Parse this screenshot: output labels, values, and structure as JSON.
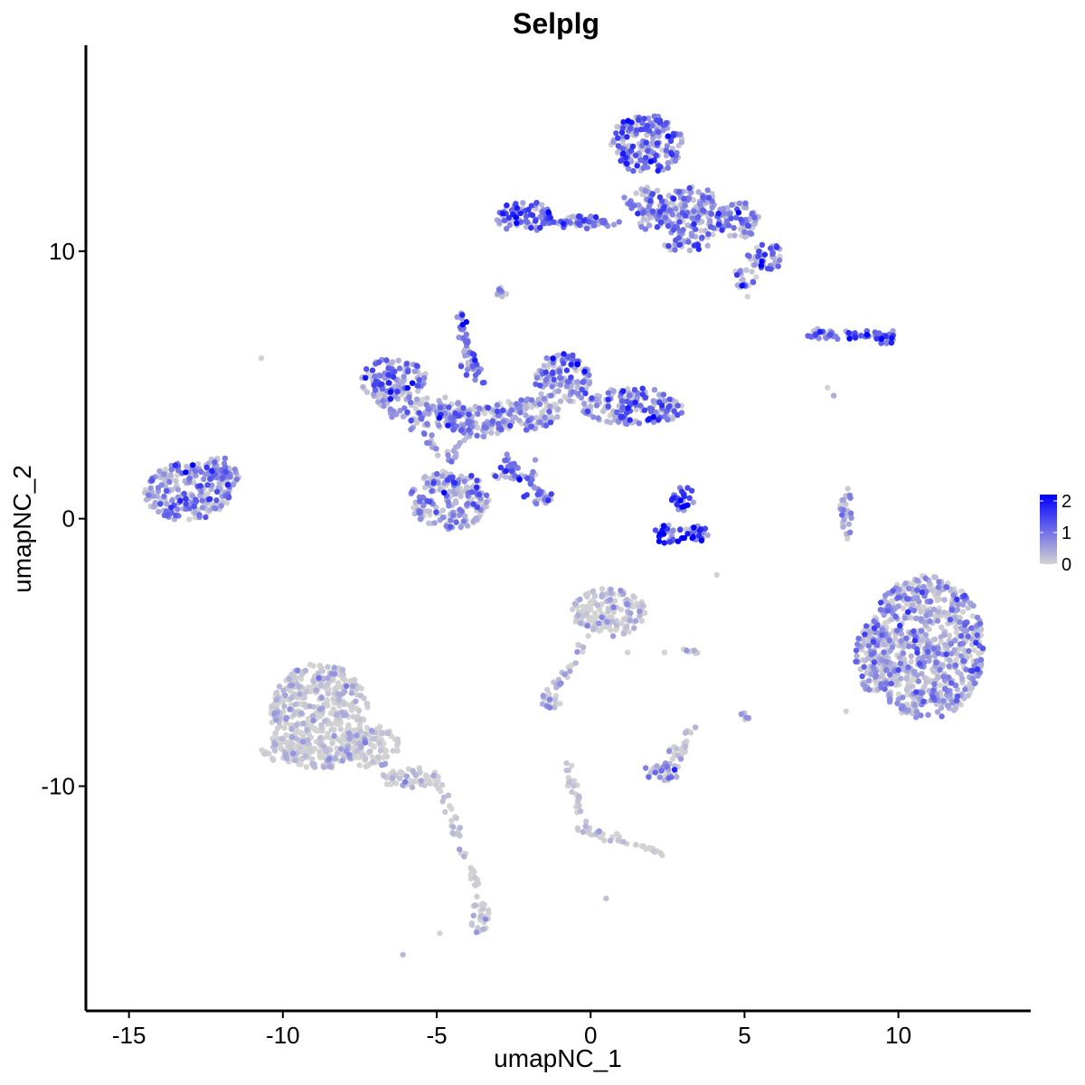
{
  "chart_data": {
    "type": "scatter",
    "title": "Selplg",
    "xlabel": "umapNC_1",
    "ylabel": "umapNC_2",
    "xlim": [
      -16.4,
      14.3
    ],
    "ylim": [
      -18.4,
      17.7
    ],
    "x_ticks": [
      -15,
      -10,
      -5,
      0,
      5,
      10
    ],
    "y_ticks": [
      -10,
      0,
      10
    ],
    "x_tick_labels": [
      "-15",
      "-10",
      "-5",
      "0",
      "5",
      "10"
    ],
    "y_tick_labels": [
      "-10",
      "0",
      "10"
    ],
    "grid": false,
    "legend": {
      "placement": "right",
      "type": "colorbar",
      "range": [
        0,
        2.2
      ],
      "ticks": [
        0,
        1,
        2
      ],
      "tick_labels": [
        "0",
        "1",
        "2"
      ],
      "low_color": "#D3D3D3",
      "high_color": "#0000FF"
    },
    "clusters": [
      {
        "cx": -13.1,
        "cy": 1.0,
        "rx": 1.4,
        "ry": 1.1,
        "expr": 0.8
      },
      {
        "cx": -12.0,
        "cy": 1.7,
        "rx": 0.6,
        "ry": 0.6,
        "expr": 0.6
      },
      {
        "cx": -6.4,
        "cy": 5.2,
        "rx": 1.1,
        "ry": 0.8,
        "expr": 0.9
      },
      {
        "cx": -5.1,
        "cy": 4.0,
        "rx": 1.0,
        "ry": 0.6,
        "expr": 0.7
      },
      {
        "cx": -3.7,
        "cy": 3.6,
        "rx": 1.0,
        "ry": 0.6,
        "expr": 0.6
      },
      {
        "cx": -2.1,
        "cy": 3.9,
        "rx": 1.2,
        "ry": 0.6,
        "expr": 0.6
      },
      {
        "cx": -0.9,
        "cy": 5.2,
        "rx": 0.9,
        "ry": 1.0,
        "expr": 0.9
      },
      {
        "cx": 1.4,
        "cy": 4.2,
        "rx": 1.7,
        "ry": 0.7,
        "expr": 0.9
      },
      {
        "cx": -4.6,
        "cy": 0.7,
        "rx": 1.3,
        "ry": 1.1,
        "expr": 0.6
      },
      {
        "cx": -4.2,
        "cy": 7.4,
        "rx": 0.2,
        "ry": 0.3,
        "expr": 1.8
      },
      {
        "cx": -2.5,
        "cy": 1.7,
        "rx": 0.8,
        "ry": 0.25,
        "expr": 0.9
      },
      {
        "cx": -1.7,
        "cy": 0.8,
        "rx": 0.5,
        "ry": 0.25,
        "expr": 0.9
      },
      {
        "cx": -4.0,
        "cy": 5.8,
        "rx": 0.25,
        "ry": 0.6,
        "expr": 0.8
      },
      {
        "cx": -2.2,
        "cy": 11.3,
        "rx": 0.9,
        "ry": 0.6,
        "expr": 1.2
      },
      {
        "cx": -0.4,
        "cy": 11.1,
        "rx": 0.9,
        "ry": 0.25,
        "expr": 1.0
      },
      {
        "cx": 1.8,
        "cy": 14.0,
        "rx": 1.2,
        "ry": 1.1,
        "expr": 0.9
      },
      {
        "cx": 1.9,
        "cy": 11.6,
        "rx": 0.6,
        "ry": 0.8,
        "expr": 0.7
      },
      {
        "cx": 3.3,
        "cy": 11.4,
        "rx": 1.1,
        "ry": 1.0,
        "expr": 0.8
      },
      {
        "cx": 4.8,
        "cy": 11.2,
        "rx": 0.7,
        "ry": 0.7,
        "expr": 0.9
      },
      {
        "cx": 5.7,
        "cy": 9.8,
        "rx": 0.6,
        "ry": 0.5,
        "expr": 1.0
      },
      {
        "cx": 5.0,
        "cy": 9.0,
        "rx": 0.4,
        "ry": 0.4,
        "expr": 0.8
      },
      {
        "cx": 3.0,
        "cy": 10.2,
        "rx": 0.6,
        "ry": 0.25,
        "expr": 0.8
      },
      {
        "cx": -2.9,
        "cy": 8.5,
        "rx": 0.2,
        "ry": 0.2,
        "expr": 0.8
      },
      {
        "cx": 7.4,
        "cy": 6.9,
        "rx": 0.5,
        "ry": 0.2,
        "expr": 1.0
      },
      {
        "cx": 8.6,
        "cy": 6.9,
        "rx": 0.5,
        "ry": 0.2,
        "expr": 1.2
      },
      {
        "cx": 9.6,
        "cy": 6.8,
        "rx": 0.4,
        "ry": 0.3,
        "expr": 1.6
      },
      {
        "cx": 3.0,
        "cy": 0.7,
        "rx": 0.4,
        "ry": 0.5,
        "expr": 1.4
      },
      {
        "cx": 2.9,
        "cy": -0.6,
        "rx": 1.0,
        "ry": 0.4,
        "expr": 2.0
      },
      {
        "cx": 8.3,
        "cy": 0.2,
        "rx": 0.2,
        "ry": 1.0,
        "expr": 0.5
      },
      {
        "cx": 10.9,
        "cy": -4.8,
        "rx": 1.9,
        "ry": 2.7,
        "expr": 0.45
      },
      {
        "cx": 9.2,
        "cy": -5.2,
        "rx": 0.6,
        "ry": 1.3,
        "expr": 0.4
      },
      {
        "cx": 0.6,
        "cy": -3.5,
        "rx": 1.2,
        "ry": 0.9,
        "expr": 0.15
      },
      {
        "cx": -1.3,
        "cy": -6.8,
        "rx": 0.4,
        "ry": 0.3,
        "expr": 0.15
      },
      {
        "cx": -8.8,
        "cy": -7.4,
        "rx": 1.6,
        "ry": 2.0,
        "expr": 0.02
      },
      {
        "cx": -7.2,
        "cy": -8.5,
        "rx": 1.0,
        "ry": 0.8,
        "expr": 0.02
      },
      {
        "cx": -9.9,
        "cy": -8.6,
        "rx": 0.8,
        "ry": 0.5,
        "expr": 0.02
      },
      {
        "cx": -5.8,
        "cy": -9.7,
        "rx": 1.0,
        "ry": 0.4,
        "expr": 0.02
      },
      {
        "cx": -3.6,
        "cy": -14.9,
        "rx": 0.3,
        "ry": 0.7,
        "expr": 0.05
      },
      {
        "cx": 2.3,
        "cy": -9.5,
        "rx": 0.6,
        "ry": 0.4,
        "expr": 0.3
      },
      {
        "cx": 2.8,
        "cy": -8.8,
        "rx": 0.3,
        "ry": 0.3,
        "expr": 0.2
      },
      {
        "cx": 5.0,
        "cy": -7.4,
        "rx": 0.2,
        "ry": 0.2,
        "expr": 0.1
      },
      {
        "cx": 3.2,
        "cy": -5.0,
        "rx": 0.3,
        "ry": 0.15,
        "expr": 0.1
      }
    ],
    "trails": [
      {
        "x1": -4.2,
        "y1": 7.2,
        "x2": -3.5,
        "y2": 5.0,
        "n": 25,
        "expr": 0.9
      },
      {
        "x1": -2.8,
        "y1": 2.3,
        "x2": -1.4,
        "y2": 0.7,
        "n": 30,
        "expr": 0.9
      },
      {
        "x1": -6.9,
        "y1": 4.4,
        "x2": -4.6,
        "y2": 2.4,
        "n": 30,
        "expr": 0.6
      },
      {
        "x1": -4.6,
        "y1": 2.0,
        "x2": -3.8,
        "y2": 4.0,
        "n": 25,
        "expr": 0.6
      },
      {
        "x1": -5.0,
        "y1": -9.6,
        "x2": -3.6,
        "y2": -14.2,
        "n": 45,
        "expr": 0.0
      },
      {
        "x1": -0.1,
        "y1": -4.5,
        "x2": -1.3,
        "y2": -6.6,
        "n": 25,
        "expr": 0.2
      },
      {
        "x1": -0.8,
        "y1": -9.2,
        "x2": -0.1,
        "y2": -11.7,
        "n": 30,
        "expr": 0.0
      },
      {
        "x1": -0.3,
        "y1": -11.6,
        "x2": 2.4,
        "y2": -12.5,
        "n": 35,
        "expr": 0.0
      },
      {
        "x1": -1.6,
        "y1": 11.1,
        "x2": 1.0,
        "y2": 11.0,
        "n": 30,
        "expr": 1.0
      },
      {
        "x1": 1.0,
        "y1": 12.0,
        "x2": 4.0,
        "y2": 10.0,
        "n": 30,
        "expr": 0.7
      },
      {
        "x1": 2.8,
        "y1": -9.2,
        "x2": 3.3,
        "y2": -7.7,
        "n": 15,
        "expr": 0.1
      },
      {
        "x1": 7.0,
        "y1": 6.9,
        "x2": 9.9,
        "y2": 6.8,
        "n": 30,
        "expr": 1.1
      },
      {
        "x1": -11.5,
        "y1": 1.4,
        "x2": -12.4,
        "y2": 2.2,
        "n": 12,
        "expr": 0.6
      }
    ],
    "isolated_points": [
      {
        "x": -10.7,
        "y": 6.0,
        "expr": 0.0
      },
      {
        "x": -6.1,
        "y": -16.3,
        "expr": 0.3
      },
      {
        "x": -4.9,
        "y": -15.5,
        "expr": 0.0
      },
      {
        "x": 4.1,
        "y": -2.1,
        "expr": 0.0
      },
      {
        "x": 5.1,
        "y": 8.3,
        "expr": 0.0
      },
      {
        "x": 7.7,
        "y": 4.9,
        "expr": 0.0
      },
      {
        "x": 7.9,
        "y": 4.6,
        "expr": 0.4
      },
      {
        "x": 0.5,
        "y": -14.2,
        "expr": 0.2
      },
      {
        "x": 1.2,
        "y": -5.0,
        "expr": 0.0
      },
      {
        "x": 0.3,
        "y": -11.9,
        "expr": 0.0
      },
      {
        "x": 2.4,
        "y": -5.0,
        "expr": 0.0
      },
      {
        "x": -1.8,
        "y": 2.2,
        "expr": 0.6
      },
      {
        "x": 8.3,
        "y": -7.2,
        "expr": 0.0
      }
    ]
  }
}
